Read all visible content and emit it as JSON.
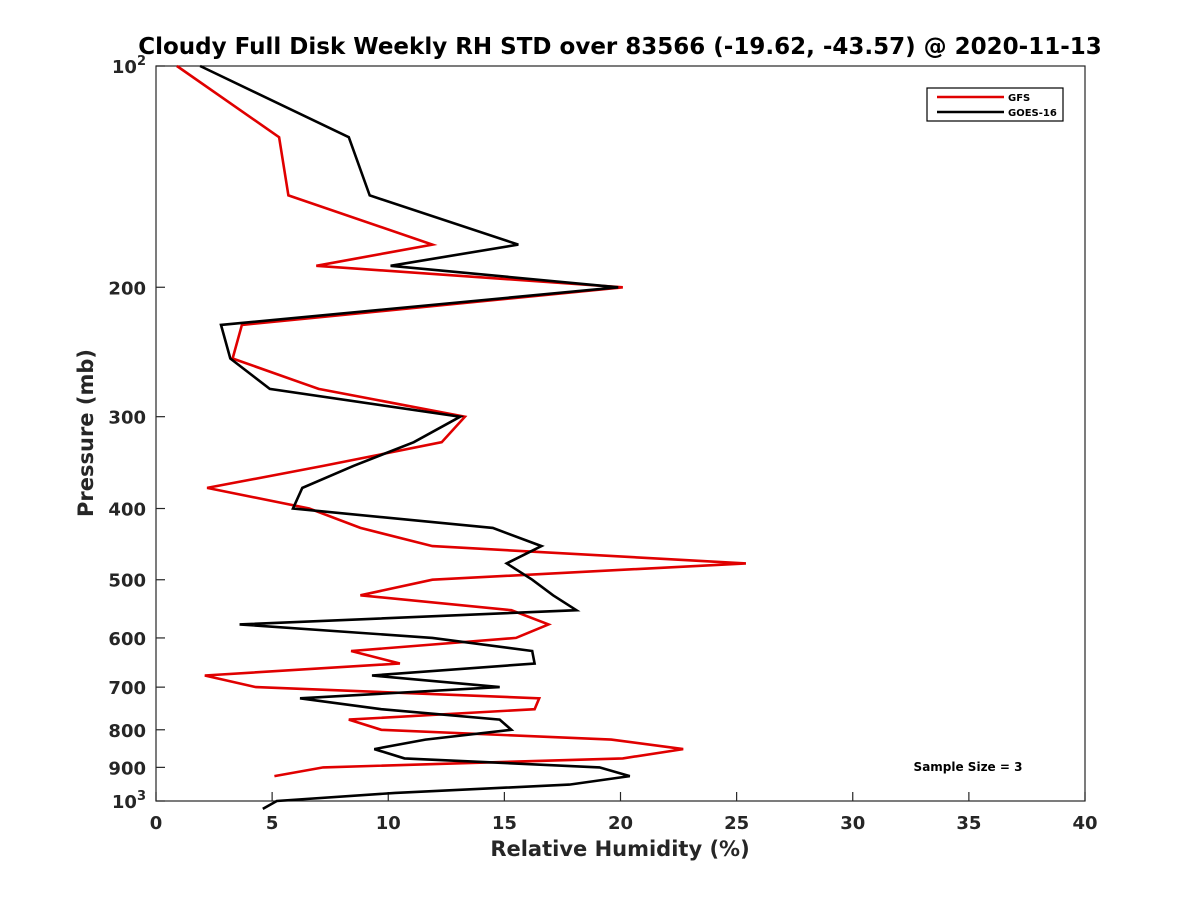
{
  "chart_data": {
    "type": "line",
    "title": "Cloudy Full Disk Weekly RH STD over 83566 (-19.62, -43.57) @ 2020-11-13",
    "xlabel": "Relative Humidity (%)",
    "ylabel": "Pressure (mb)",
    "xlim": [
      0,
      40
    ],
    "ylim": [
      100,
      1000
    ],
    "yscale": "log",
    "y_reversed": true,
    "grid": false,
    "legend_position": "top-right",
    "x_ticks": [
      "0",
      "5",
      "10",
      "15",
      "20",
      "25",
      "30",
      "35",
      "40"
    ],
    "y_ticks": [
      {
        "value": 100,
        "base": "10",
        "exp": "2"
      },
      {
        "value": 200,
        "label": "200"
      },
      {
        "value": 300,
        "label": "300"
      },
      {
        "value": 400,
        "label": "400"
      },
      {
        "value": 500,
        "label": "500"
      },
      {
        "value": 600,
        "label": "600"
      },
      {
        "value": 700,
        "label": "700"
      },
      {
        "value": 800,
        "label": "800"
      },
      {
        "value": 900,
        "label": "900"
      },
      {
        "value": 1000,
        "base": "10",
        "exp": "3"
      }
    ],
    "annotation": "Sample Size = 3",
    "series": [
      {
        "name": "GFS",
        "color": "#e00000",
        "points": [
          [
            0.9,
            100
          ],
          [
            5.3,
            125
          ],
          [
            5.7,
            150
          ],
          [
            11.9,
            175
          ],
          [
            6.9,
            187
          ],
          [
            20.1,
            200
          ],
          [
            3.7,
            225
          ],
          [
            3.3,
            250
          ],
          [
            7.0,
            275
          ],
          [
            13.3,
            300
          ],
          [
            12.3,
            325
          ],
          [
            7.2,
            350
          ],
          [
            2.2,
            375
          ],
          [
            6.6,
            400
          ],
          [
            8.8,
            425
          ],
          [
            11.9,
            450
          ],
          [
            25.4,
            475
          ],
          [
            11.9,
            500
          ],
          [
            8.8,
            525
          ],
          [
            15.3,
            550
          ],
          [
            16.9,
            575
          ],
          [
            15.5,
            600
          ],
          [
            8.4,
            625
          ],
          [
            10.5,
            650
          ],
          [
            2.1,
            675
          ],
          [
            4.3,
            700
          ],
          [
            16.5,
            725
          ],
          [
            16.3,
            750
          ],
          [
            8.3,
            775
          ],
          [
            9.7,
            800
          ],
          [
            19.6,
            825
          ],
          [
            22.7,
            850
          ],
          [
            20.1,
            875
          ],
          [
            7.2,
            900
          ],
          [
            5.1,
            925
          ]
        ]
      },
      {
        "name": "GOES-16",
        "color": "#000000",
        "points": [
          [
            1.9,
            100
          ],
          [
            8.3,
            125
          ],
          [
            9.2,
            150
          ],
          [
            15.6,
            175
          ],
          [
            10.1,
            187
          ],
          [
            19.9,
            200
          ],
          [
            2.8,
            225
          ],
          [
            3.2,
            250
          ],
          [
            4.9,
            275
          ],
          [
            13.1,
            300
          ],
          [
            11.1,
            325
          ],
          [
            8.5,
            350
          ],
          [
            6.3,
            375
          ],
          [
            5.9,
            400
          ],
          [
            14.5,
            425
          ],
          [
            16.6,
            450
          ],
          [
            15.1,
            475
          ],
          [
            16.2,
            500
          ],
          [
            17.1,
            525
          ],
          [
            18.1,
            550
          ],
          [
            3.6,
            575
          ],
          [
            11.9,
            600
          ],
          [
            16.2,
            625
          ],
          [
            16.3,
            650
          ],
          [
            9.3,
            675
          ],
          [
            14.8,
            700
          ],
          [
            6.2,
            725
          ],
          [
            9.7,
            750
          ],
          [
            14.8,
            775
          ],
          [
            15.3,
            800
          ],
          [
            11.6,
            825
          ],
          [
            9.4,
            850
          ],
          [
            10.7,
            875
          ],
          [
            19.1,
            900
          ],
          [
            20.4,
            925
          ],
          [
            17.8,
            950
          ],
          [
            10.3,
            975
          ],
          [
            5.2,
            1000
          ],
          [
            4.6,
            1025
          ]
        ]
      }
    ]
  }
}
